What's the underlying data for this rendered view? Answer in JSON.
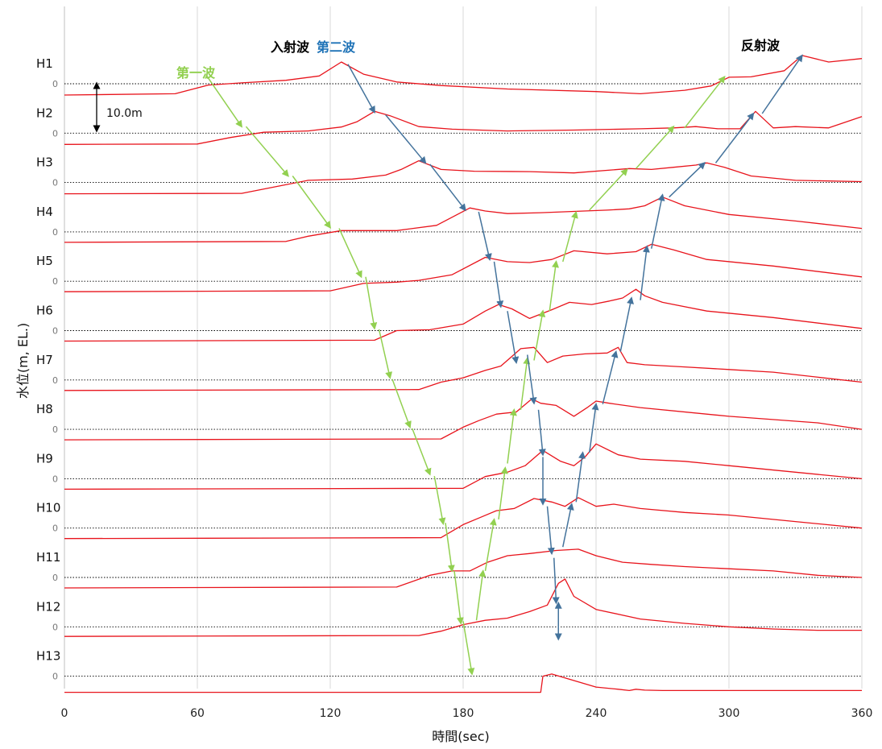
{
  "chart_data": {
    "type": "line",
    "xlabel": "時間(sec)",
    "ylabel": "水位(m, EL.)",
    "xlim": [
      0,
      360
    ],
    "x_ticks": [
      0,
      60,
      120,
      180,
      240,
      300,
      360
    ],
    "grid": true,
    "offset_unit_m": 10.0,
    "scale_bar_label": "10.0m",
    "baseline_label": "0",
    "colors": {
      "series": "#e8141c",
      "first_wave": "#92d050",
      "second_wave": "#44739c",
      "reflected": "#44739c",
      "baseline": "#000000",
      "grid": "#d9d9d9"
    },
    "annotations": [
      {
        "text": "入射波",
        "color": "#000000"
      },
      {
        "text": "第二波",
        "color": "#1f73b7"
      },
      {
        "text": "第一波",
        "color": "#92d050"
      },
      {
        "text": "反射波",
        "color": "#000000"
      }
    ],
    "series": [
      {
        "name": "H1",
        "x": [
          0,
          50,
          65,
          80,
          100,
          115,
          125,
          135,
          150,
          170,
          200,
          240,
          260,
          280,
          292,
          300,
          310,
          325,
          333,
          345,
          360
        ],
        "y": [
          -2.6,
          -2.3,
          -0.3,
          0.2,
          0.8,
          1.8,
          5.0,
          2.2,
          0.4,
          -0.4,
          -1.2,
          -1.8,
          -2.3,
          -1.5,
          -0.5,
          1.5,
          1.6,
          3.0,
          6.5,
          5.0,
          5.8
        ]
      },
      {
        "name": "H2",
        "x": [
          0,
          60,
          75,
          90,
          110,
          125,
          132,
          140,
          147,
          160,
          175,
          200,
          230,
          260,
          275,
          285,
          295,
          305,
          312,
          320,
          330,
          345,
          360
        ],
        "y": [
          -2.6,
          -2.5,
          -1.0,
          0.2,
          0.5,
          1.4,
          2.6,
          5.0,
          4.0,
          1.5,
          0.9,
          0.5,
          0.7,
          1.0,
          1.2,
          1.5,
          1.0,
          1.0,
          5.0,
          1.2,
          1.5,
          1.2,
          3.8
        ]
      },
      {
        "name": "H3",
        "x": [
          0,
          80,
          95,
          110,
          130,
          145,
          152,
          160,
          170,
          185,
          210,
          230,
          255,
          265,
          275,
          285,
          290,
          298,
          310,
          330,
          360
        ],
        "y": [
          -2.6,
          -2.5,
          -1.0,
          0.5,
          0.8,
          1.7,
          3.0,
          5.0,
          3.0,
          2.6,
          2.5,
          2.2,
          3.2,
          3.0,
          3.5,
          4.0,
          4.5,
          3.5,
          1.5,
          0.5,
          0.2
        ]
      },
      {
        "name": "H4",
        "x": [
          0,
          100,
          110,
          125,
          150,
          168,
          183,
          190,
          200,
          215,
          230,
          245,
          255,
          262,
          270,
          280,
          300,
          330,
          360
        ],
        "y": [
          -2.4,
          -2.2,
          -1.0,
          0.3,
          0.3,
          1.5,
          5.5,
          4.8,
          4.2,
          4.4,
          4.7,
          5.0,
          5.3,
          6.0,
          8.0,
          6.0,
          4.0,
          2.5,
          0.8
        ]
      },
      {
        "name": "H5",
        "x": [
          0,
          120,
          135,
          150,
          160,
          175,
          190,
          200,
          210,
          220,
          230,
          245,
          258,
          265,
          275,
          290,
          320,
          360
        ],
        "y": [
          -2.4,
          -2.2,
          -0.5,
          -0.2,
          0.2,
          1.5,
          5.5,
          4.5,
          4.3,
          5.0,
          7.0,
          6.3,
          6.8,
          8.5,
          7.2,
          5.0,
          3.5,
          1.0
        ]
      },
      {
        "name": "H6",
        "x": [
          0,
          140,
          150,
          165,
          180,
          190,
          196,
          202,
          210,
          220,
          228,
          238,
          246,
          252,
          258,
          262,
          270,
          290,
          320,
          360
        ],
        "y": [
          -2.4,
          -2.2,
          0.0,
          0.2,
          1.5,
          4.5,
          6.0,
          5.0,
          2.8,
          4.8,
          6.5,
          6.0,
          6.8,
          7.5,
          9.5,
          8.0,
          6.5,
          4.5,
          3.0,
          0.5
        ]
      },
      {
        "name": "H7",
        "x": [
          0,
          160,
          170,
          180,
          190,
          197,
          206,
          212,
          218,
          225,
          235,
          245,
          250,
          254,
          262,
          280,
          300,
          320,
          360
        ],
        "y": [
          -2.4,
          -2.2,
          -0.5,
          0.5,
          2.2,
          3.2,
          7.2,
          7.5,
          4.0,
          5.5,
          6.0,
          6.2,
          7.5,
          4.0,
          3.5,
          3.0,
          2.4,
          1.8,
          -0.5
        ]
      },
      {
        "name": "H8",
        "x": [
          0,
          170,
          180,
          187,
          195,
          204,
          211,
          215,
          222,
          230,
          236,
          240,
          246,
          260,
          300,
          340,
          360
        ],
        "y": [
          -2.4,
          -2.2,
          0.5,
          2.0,
          3.5,
          4.0,
          7.0,
          6.0,
          5.5,
          3.0,
          5.0,
          6.5,
          6.0,
          5.0,
          3.0,
          1.5,
          0.0
        ]
      },
      {
        "name": "H9",
        "x": [
          0,
          180,
          190,
          200,
          208,
          216,
          224,
          230,
          235,
          240,
          250,
          260,
          280,
          300,
          330,
          360
        ],
        "y": [
          -2.4,
          -2.2,
          0.5,
          1.5,
          3.0,
          6.5,
          4.0,
          3.0,
          5.0,
          8.0,
          5.5,
          4.5,
          4.0,
          3.0,
          1.5,
          0.0
        ]
      },
      {
        "name": "H10",
        "x": [
          0,
          170,
          180,
          188,
          195,
          203,
          212,
          220,
          226,
          232,
          240,
          248,
          260,
          280,
          300,
          330,
          360
        ],
        "y": [
          -2.4,
          -2.2,
          0.8,
          2.5,
          4.0,
          4.5,
          6.8,
          6.0,
          5.0,
          7.0,
          5.0,
          5.5,
          4.5,
          3.6,
          3.0,
          1.5,
          0.0
        ]
      },
      {
        "name": "H11",
        "x": [
          0,
          150,
          165,
          175,
          183,
          191,
          200,
          210,
          222,
          232,
          240,
          252,
          265,
          280,
          300,
          320,
          340,
          360
        ],
        "y": [
          -2.4,
          -2.2,
          0.5,
          1.5,
          1.5,
          3.5,
          5.0,
          5.5,
          6.2,
          6.5,
          5.0,
          3.5,
          3.0,
          2.5,
          2.0,
          1.5,
          0.5,
          0.0
        ]
      },
      {
        "name": "H12",
        "x": [
          0,
          160,
          170,
          180,
          190,
          200,
          210,
          218,
          223,
          226,
          230,
          240,
          260,
          280,
          300,
          320,
          340,
          360
        ],
        "y": [
          -2.2,
          -2.0,
          -1.0,
          0.5,
          1.5,
          2.0,
          3.5,
          5.0,
          10.0,
          11.0,
          7.0,
          4.0,
          1.8,
          0.8,
          0.0,
          -0.5,
          -0.8,
          -0.8
        ]
      },
      {
        "name": "H13",
        "x": [
          0,
          215,
          216,
          220,
          230,
          240,
          250,
          255,
          258,
          262,
          270,
          300,
          330,
          360
        ],
        "y": [
          -3.7,
          -3.7,
          0.0,
          0.5,
          -1.0,
          -2.5,
          -3.0,
          -3.3,
          -3.0,
          -3.2,
          -3.3,
          -3.3,
          -3.3,
          -3.3
        ]
      }
    ]
  }
}
